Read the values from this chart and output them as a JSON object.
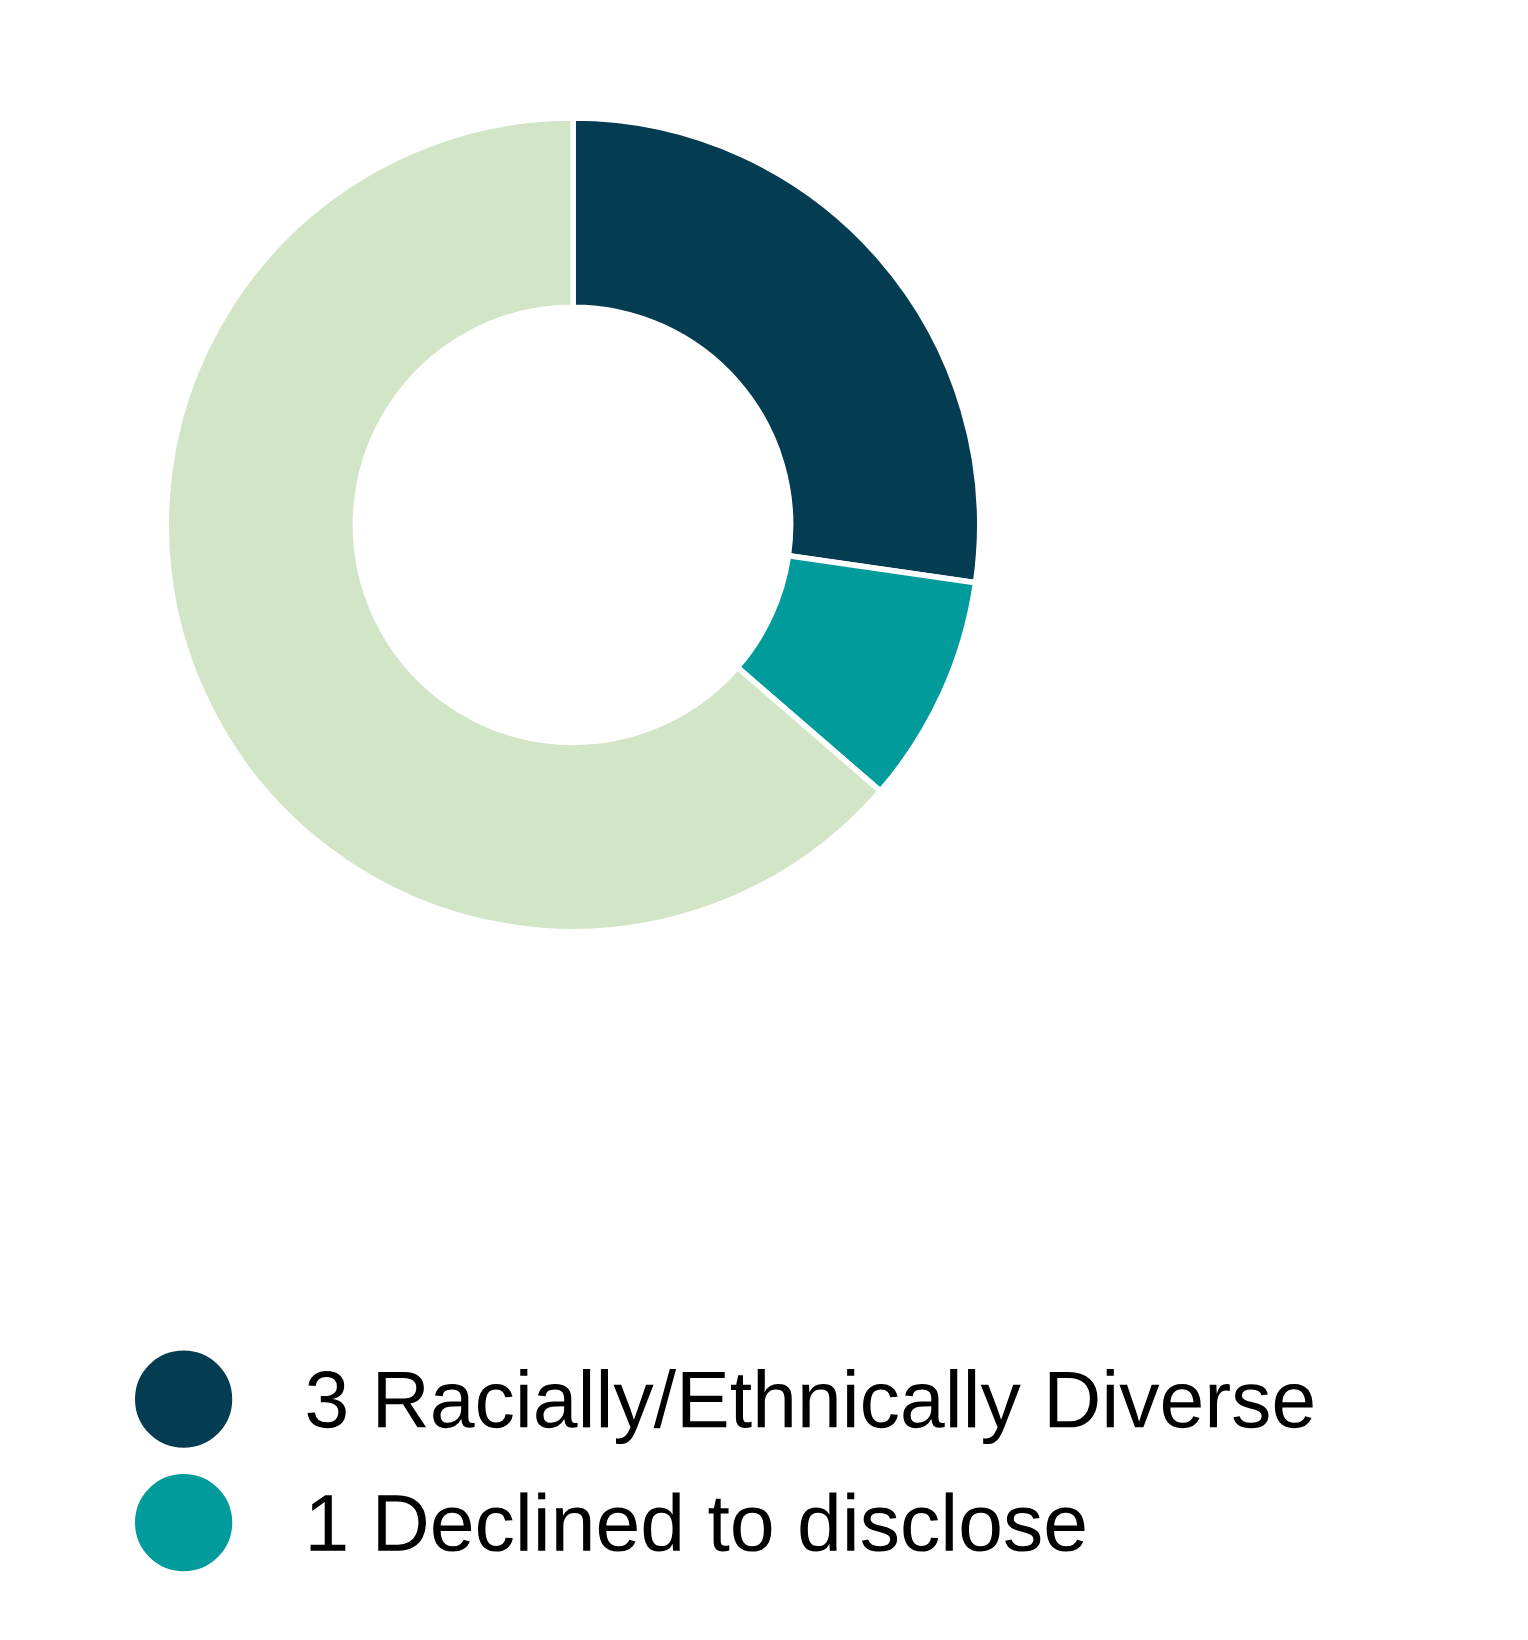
{
  "chart_data": {
    "type": "donut",
    "categories": [
      "3 Racially/Ethnically Diverse",
      "1 Declined to disclose",
      null
    ],
    "values": [
      3,
      1,
      7
    ],
    "colors": [
      "#043c52",
      "#019b9b",
      "#d2e5c6"
    ],
    "legend": "bottom"
  }
}
